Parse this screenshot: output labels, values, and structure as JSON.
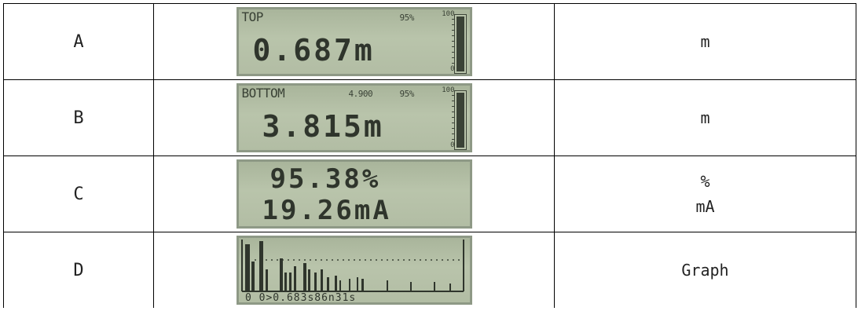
{
  "rows": [
    {
      "code": "A",
      "lcd": {
        "label": "TOP",
        "aux": "",
        "percent": "95%",
        "value": "0.687m",
        "bar_fraction": 0.95
      },
      "unit_lines": [
        "m"
      ]
    },
    {
      "code": "B",
      "lcd": {
        "label": "BOTTOM",
        "aux": "4.900",
        "percent": "95%",
        "value": "3.815m",
        "bar_fraction": 0.95
      },
      "unit_lines": [
        "m"
      ]
    },
    {
      "code": "C",
      "lcd": {
        "line1": "95.38%",
        "line2": "19.26mA"
      },
      "unit_lines": [
        "%",
        "mA"
      ]
    },
    {
      "code": "D",
      "lcd": {
        "footer": "0 0>0.683s86n31s"
      },
      "unit_lines": [
        "Graph"
      ]
    }
  ],
  "bar_scale": {
    "top": "100",
    "bottom": "0"
  }
}
